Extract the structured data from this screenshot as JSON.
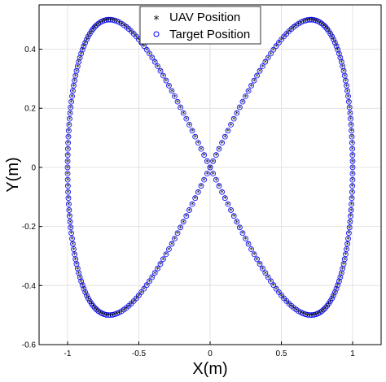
{
  "chart_data": {
    "type": "scatter",
    "title": "",
    "xlabel": "X(m)",
    "ylabel": "Y(m)",
    "xlim": [
      -1.2,
      1.2
    ],
    "ylim": [
      -0.6,
      0.55
    ],
    "x_ticks": [
      -1,
      -0.5,
      0,
      0.5,
      1
    ],
    "x_tick_labels": [
      "-1",
      "-0.5",
      "0",
      "0.5",
      "1"
    ],
    "y_ticks": [
      -0.6,
      -0.4,
      -0.2,
      0,
      0.2,
      0.4
    ],
    "y_tick_labels": [
      "-0.6",
      "-0.4",
      "-0.2",
      "0",
      "0.2",
      "0.4"
    ],
    "grid": true,
    "legend_position": "top-center",
    "curve": "lemniscate of Gerono: x = sin(t), y = sin(t)cos(t), t from 0 to 2π",
    "series": [
      {
        "name": "UAV Position",
        "marker": "asterisk",
        "color": "#000000"
      },
      {
        "name": "Target Position",
        "marker": "circle",
        "color": "#0000ff"
      }
    ]
  }
}
